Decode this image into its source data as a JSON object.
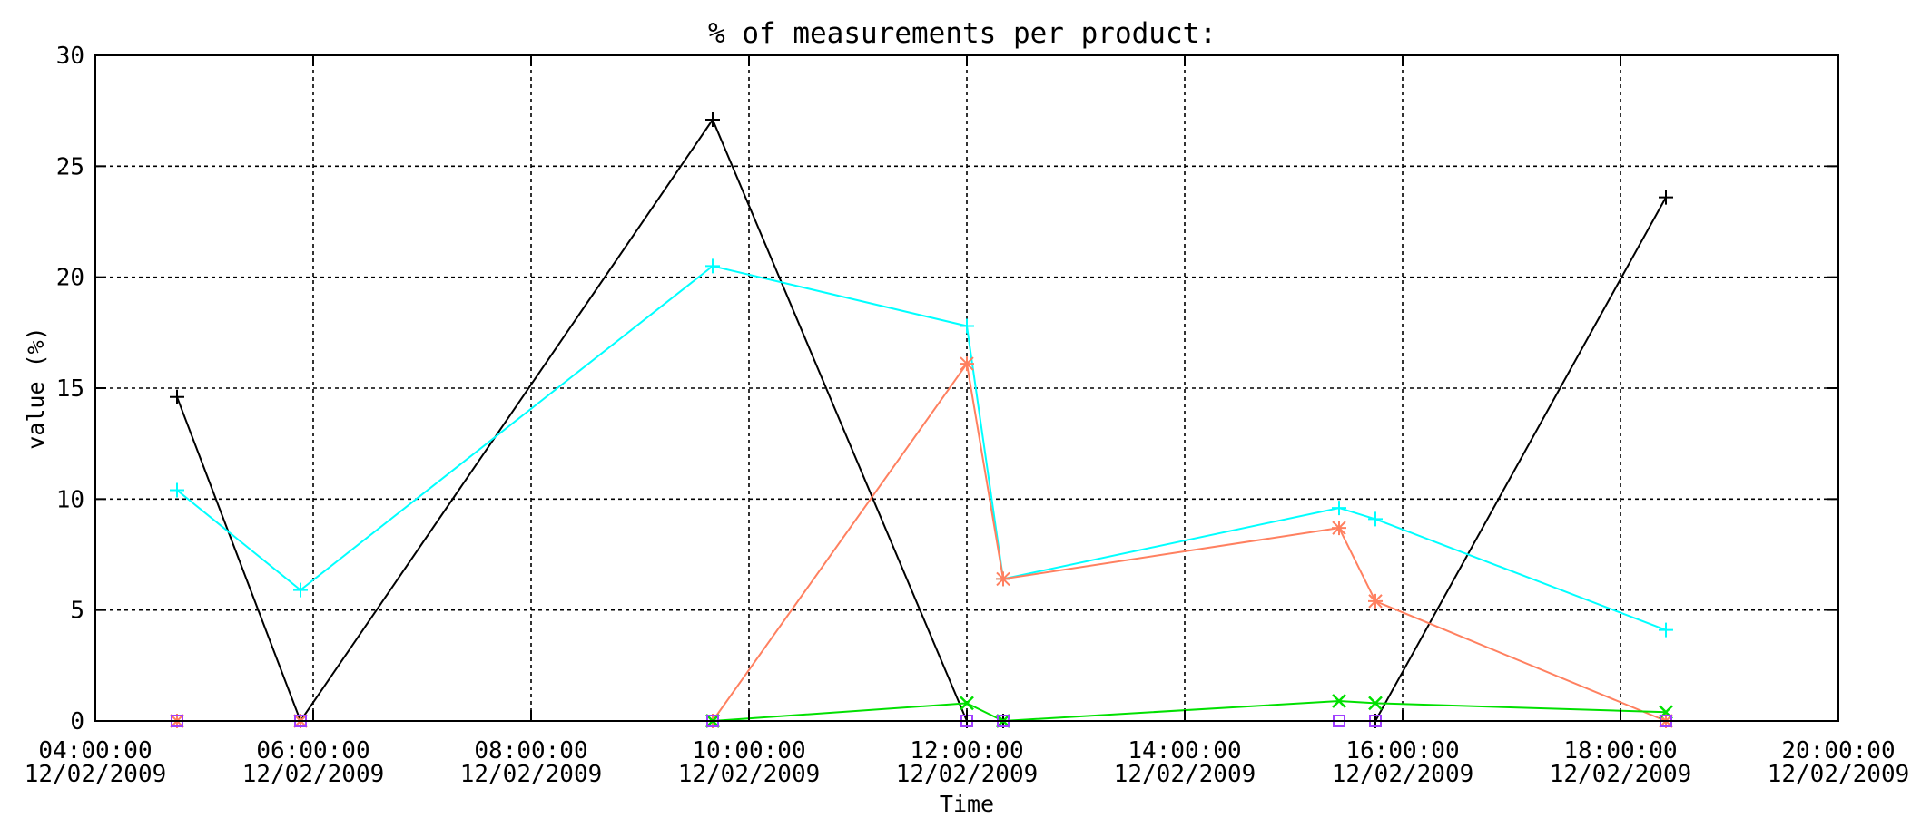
{
  "chart_data": {
    "type": "line",
    "title": "% of measurements per product:",
    "xlabel": "Time",
    "ylabel": "value (%)",
    "xlim": [
      "12/02/2009 04:00:00",
      "12/02/2009 20:00:00"
    ],
    "ylim": [
      0,
      30
    ],
    "grid": true,
    "x_ticks": [
      {
        "time": "04:00:00",
        "date": "12/02/2009"
      },
      {
        "time": "06:00:00",
        "date": "12/02/2009"
      },
      {
        "time": "08:00:00",
        "date": "12/02/2009"
      },
      {
        "time": "10:00:00",
        "date": "12/02/2009"
      },
      {
        "time": "12:00:00",
        "date": "12/02/2009"
      },
      {
        "time": "14:00:00",
        "date": "12/02/2009"
      },
      {
        "time": "16:00:00",
        "date": "12/02/2009"
      },
      {
        "time": "18:00:00",
        "date": "12/02/2009"
      },
      {
        "time": "20:00:00",
        "date": "12/02/2009"
      }
    ],
    "y_ticks": [
      "0",
      "5",
      "10",
      "15",
      "20",
      "25",
      "30"
    ],
    "series": [
      {
        "color": "#000000",
        "marker": "tick",
        "points": [
          [
            "12/02/2009 04:45",
            14.6
          ],
          [
            "12/02/2009 05:53",
            0.0
          ],
          [
            "12/02/2009 09:40",
            27.1
          ],
          [
            "12/02/2009 12:00",
            0.0
          ],
          [
            "12/02/2009 12:20",
            0.0
          ],
          [
            "12/02/2009 15:45",
            0.0
          ],
          [
            "12/02/2009 18:25",
            23.6
          ]
        ]
      },
      {
        "color": "#00ffff",
        "marker": "tick",
        "points": [
          [
            "12/02/2009 04:45",
            10.4
          ],
          [
            "12/02/2009 05:53",
            5.9
          ],
          [
            "12/02/2009 09:40",
            20.5
          ],
          [
            "12/02/2009 12:00",
            17.8
          ],
          [
            "12/02/2009 12:20",
            6.4
          ],
          [
            "12/02/2009 15:25",
            9.6
          ],
          [
            "12/02/2009 15:45",
            9.1
          ],
          [
            "12/02/2009 18:25",
            4.1
          ]
        ]
      },
      {
        "color": "#ff8060",
        "marker": "asterisk",
        "points": [
          [
            "12/02/2009 04:45",
            0.0
          ],
          [
            "12/02/2009 05:53",
            0.0
          ],
          [
            "12/02/2009 09:40",
            0.0
          ],
          [
            "12/02/2009 12:00",
            16.1
          ],
          [
            "12/02/2009 12:20",
            6.4
          ],
          [
            "12/02/2009 15:25",
            8.7
          ],
          [
            "12/02/2009 15:45",
            5.4
          ],
          [
            "12/02/2009 18:25",
            0.0
          ]
        ]
      },
      {
        "color": "#00e000",
        "marker": "x",
        "points": [
          [
            "12/02/2009 09:40",
            0.0
          ],
          [
            "12/02/2009 12:00",
            0.8
          ],
          [
            "12/02/2009 12:20",
            0.0
          ],
          [
            "12/02/2009 15:25",
            0.9
          ],
          [
            "12/02/2009 15:45",
            0.8
          ],
          [
            "12/02/2009 18:25",
            0.4
          ]
        ]
      },
      {
        "color": "#a040ff",
        "marker": "square",
        "points": [
          [
            "12/02/2009 04:45",
            0.0
          ],
          [
            "12/02/2009 05:53",
            0.0
          ],
          [
            "12/02/2009 09:40",
            0.0
          ],
          [
            "12/02/2009 12:00",
            0.0
          ],
          [
            "12/02/2009 12:20",
            0.0
          ],
          [
            "12/02/2009 15:25",
            0.0
          ],
          [
            "12/02/2009 15:45",
            0.0
          ],
          [
            "12/02/2009 18:25",
            0.0
          ]
        ]
      }
    ]
  }
}
